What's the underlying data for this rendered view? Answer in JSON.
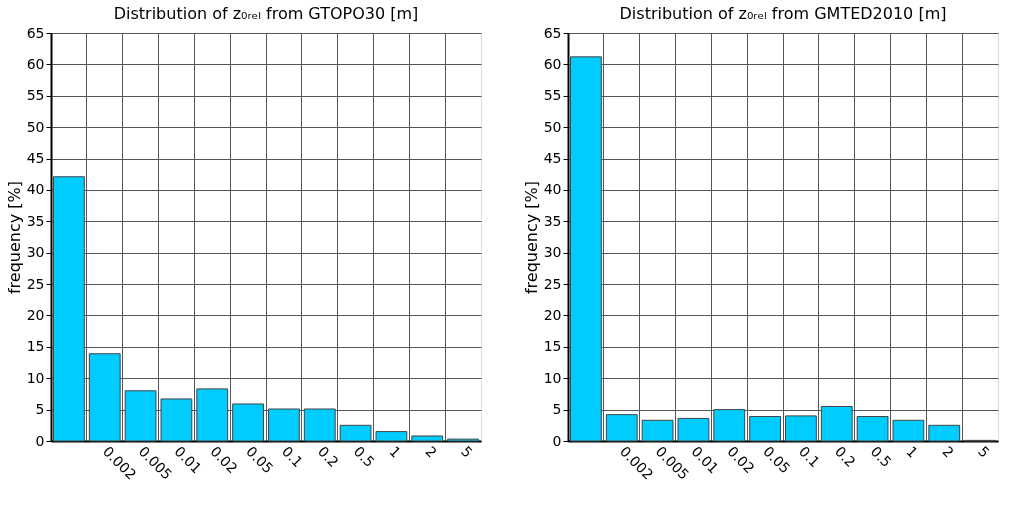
{
  "chart_data": [
    {
      "type": "bar",
      "title": "Distribution of z₀ᵣₑₗ from GTOPO30 [m]",
      "ylabel": "frequency [%]",
      "categories": [
        null,
        "0.002",
        "0.005",
        "0.01",
        "0.02",
        "0.05",
        "0.1",
        "0.2",
        "0.5",
        "1",
        "2",
        "5"
      ],
      "values": [
        42.1,
        13.9,
        8.0,
        6.7,
        8.3,
        5.9,
        5.1,
        5.1,
        2.5,
        1.5,
        0.8,
        0.3
      ],
      "color": "#00ccff",
      "ylim": [
        0,
        65
      ],
      "yticks": [
        0,
        5,
        10,
        15,
        20,
        25,
        30,
        35,
        40,
        45,
        50,
        55,
        60,
        65
      ],
      "grid": true
    },
    {
      "type": "bar",
      "title": "Distribution of z₀ᵣₑₗ from GMTED2010 [m]",
      "ylabel": "frequency [%]",
      "categories": [
        null,
        "0.002",
        "0.005",
        "0.01",
        "0.02",
        "0.05",
        "0.1",
        "0.2",
        "0.5",
        "1",
        "2",
        "5"
      ],
      "values": [
        61.2,
        4.2,
        3.3,
        3.6,
        5.0,
        3.9,
        4.0,
        5.5,
        3.9,
        3.3,
        2.5,
        0.1
      ],
      "color": "#00ccff",
      "ylim": [
        0,
        65
      ],
      "yticks": [
        0,
        5,
        10,
        15,
        20,
        25,
        30,
        35,
        40,
        45,
        50,
        55,
        60,
        65
      ],
      "grid": true
    }
  ]
}
